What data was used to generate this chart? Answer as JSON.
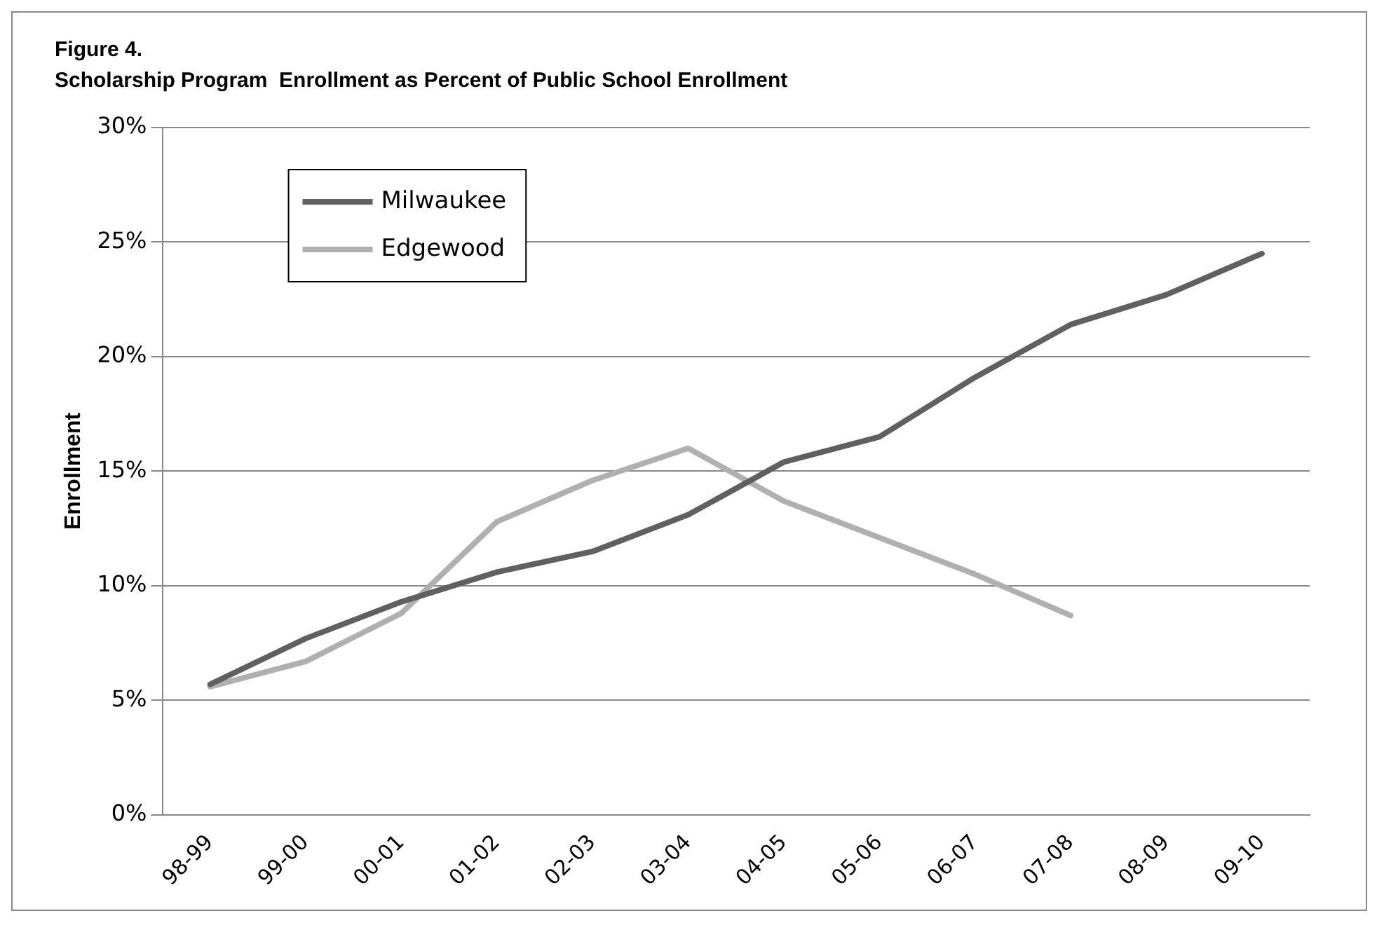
{
  "chart_data": {
    "type": "line",
    "title": "Figure 4.",
    "subtitle": "Scholarship Program  Enrollment as Percent of Public School Enrollment",
    "ylabel": "Enrollment",
    "categories": [
      "98-99",
      "99-00",
      "00-01",
      "01-02",
      "02-03",
      "03-04",
      "04-05",
      "05-06",
      "06-07",
      "07-08",
      "08-09",
      "09-10"
    ],
    "series": [
      {
        "name": "Milwaukee",
        "color": "#606060",
        "values": [
          5.7,
          7.7,
          9.3,
          10.6,
          11.5,
          13.1,
          15.4,
          16.5,
          19.1,
          21.4,
          22.7,
          24.5
        ]
      },
      {
        "name": "Edgewood",
        "color": "#b0b0b0",
        "values": [
          5.6,
          6.7,
          8.8,
          12.8,
          14.6,
          16.0,
          13.7,
          12.1,
          10.5,
          8.7,
          null,
          null
        ]
      }
    ],
    "ylim": [
      0,
      30
    ],
    "yticks": [
      {
        "value": 0,
        "label": "0%"
      },
      {
        "value": 5,
        "label": "5%"
      },
      {
        "value": 10,
        "label": "10%"
      },
      {
        "value": 15,
        "label": "15%"
      },
      {
        "value": 20,
        "label": "20%"
      },
      {
        "value": 25,
        "label": "25%"
      },
      {
        "value": 30,
        "label": "30%"
      }
    ],
    "grid": "y",
    "legend": "top left",
    "marker": "none",
    "line_style": "solid"
  }
}
